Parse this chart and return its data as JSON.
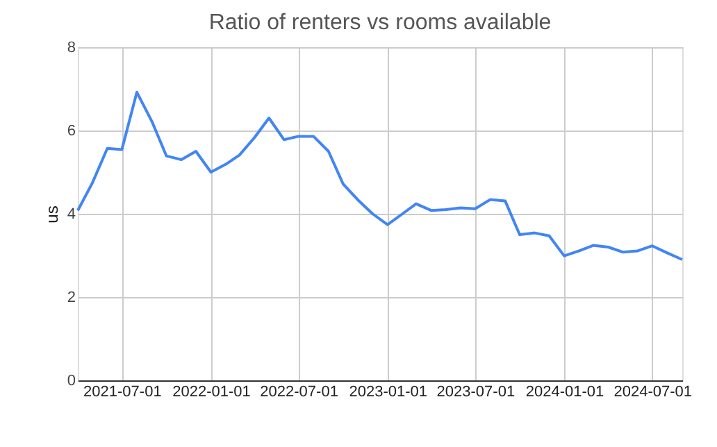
{
  "chart_data": {
    "type": "line",
    "title": "Ratio of renters vs rooms available",
    "ylabel": "us",
    "x": [
      "2021-04-01",
      "2021-05-01",
      "2021-06-01",
      "2021-07-01",
      "2021-08-01",
      "2021-09-01",
      "2021-10-01",
      "2021-11-01",
      "2021-12-01",
      "2022-01-01",
      "2022-02-01",
      "2022-03-01",
      "2022-04-01",
      "2022-05-01",
      "2022-06-01",
      "2022-07-01",
      "2022-08-01",
      "2022-09-01",
      "2022-10-01",
      "2022-11-01",
      "2022-12-01",
      "2023-01-01",
      "2023-02-01",
      "2023-03-01",
      "2023-04-01",
      "2023-05-01",
      "2023-06-01",
      "2023-07-01",
      "2023-08-01",
      "2023-09-01",
      "2023-10-01",
      "2023-11-01",
      "2023-12-01",
      "2024-01-01",
      "2024-02-01",
      "2024-03-01",
      "2024-04-01",
      "2024-05-01",
      "2024-06-01",
      "2024-07-01",
      "2024-08-01",
      "2024-09-01"
    ],
    "series": [
      {
        "color": "#4285f4",
        "values": [
          4.08,
          4.74,
          5.57,
          5.54,
          6.92,
          6.22,
          5.39,
          5.3,
          5.5,
          5.0,
          5.19,
          5.41,
          5.83,
          6.3,
          5.78,
          5.86,
          5.86,
          5.5,
          4.72,
          4.33,
          4.0,
          3.74,
          4.0,
          4.24,
          4.08,
          4.1,
          4.14,
          4.12,
          4.34,
          4.31,
          3.5,
          3.54,
          3.47,
          2.99,
          3.11,
          3.24,
          3.2,
          3.08,
          3.11,
          3.23,
          3.06,
          2.9
        ]
      }
    ],
    "xlim": [
      "2021-04-01",
      "2024-09-01"
    ],
    "xticks": [
      "2021-07-01",
      "2022-01-01",
      "2022-07-01",
      "2023-01-01",
      "2023-07-01",
      "2024-01-01",
      "2024-07-01"
    ],
    "ylim": [
      0,
      8
    ],
    "yticks": [
      0,
      2,
      4,
      6,
      8
    ],
    "grid": true,
    "marker": "none",
    "line_style": "solid"
  }
}
